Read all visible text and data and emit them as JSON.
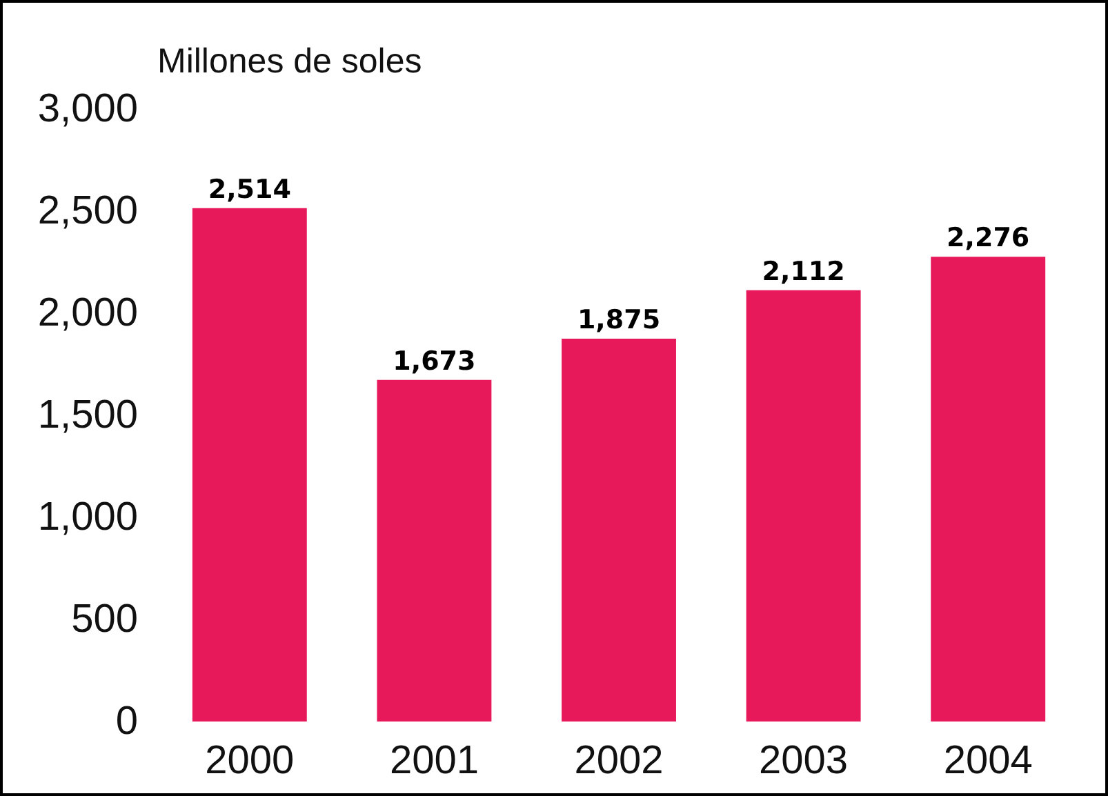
{
  "chart_data": {
    "type": "bar",
    "ylabel": "Millones de soles",
    "categories": [
      "2000",
      "2001",
      "2002",
      "2003",
      "2004"
    ],
    "values": [
      2514,
      1673,
      1875,
      2112,
      2276
    ],
    "value_labels": [
      "2,514",
      "1,673",
      "1,875",
      "2,112",
      "2,276"
    ],
    "color": "#e8195a",
    "ylim": [
      0,
      3000
    ],
    "yticks": [
      0,
      500,
      {
        "value": 1000,
        "label": "1,000"
      },
      {
        "value": 1500,
        "label": "1,500"
      },
      {
        "value": 2000,
        "label": "2,000"
      },
      {
        "value": 2500,
        "label": "2,500"
      },
      {
        "value": 3000,
        "label": "3,000"
      }
    ],
    "grid": false
  }
}
